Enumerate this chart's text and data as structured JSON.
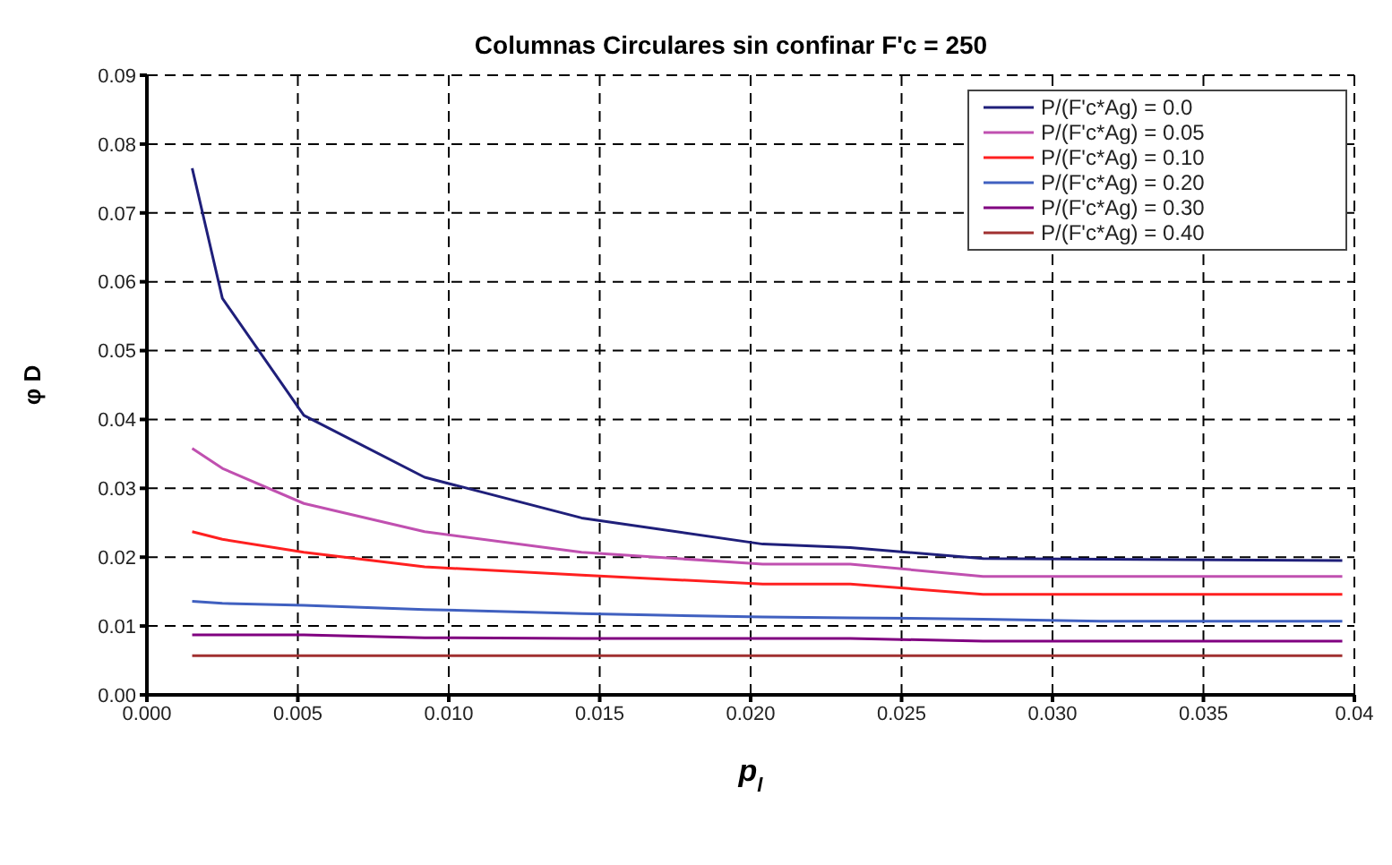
{
  "chart_data": {
    "type": "line",
    "title": "Columnas Circulares sin confinar F'c = 250",
    "xlabel": "p$_{l}$",
    "ylabel": "φ D",
    "x": [
      0.0015,
      0.0025,
      0.0052,
      0.0092,
      0.0144,
      0.0204,
      0.0233,
      0.0277,
      0.0316,
      0.0396
    ],
    "series": [
      {
        "name": "P/(F'c*Ag) = 0.0",
        "color": "#1f1f7a",
        "values": [
          0.0765,
          0.0576,
          0.0406,
          0.0316,
          0.0257,
          0.0219,
          0.0214,
          0.0198,
          0.0197,
          0.0195
        ]
      },
      {
        "name": "P/(F'c*Ag) = 0.05",
        "color": "#c050b0",
        "values": [
          0.0358,
          0.0329,
          0.0278,
          0.0237,
          0.0207,
          0.019,
          0.019,
          0.0172,
          0.0172,
          0.0172
        ]
      },
      {
        "name": "P/(F'c*Ag) = 0.10",
        "color": "#ff2020",
        "values": [
          0.0237,
          0.0226,
          0.0207,
          0.0186,
          0.0174,
          0.0161,
          0.0161,
          0.0146,
          0.0146,
          0.0146
        ]
      },
      {
        "name": "P/(F'c*Ag) = 0.20",
        "color": "#4060c0",
        "values": [
          0.0136,
          0.0133,
          0.013,
          0.0124,
          0.0118,
          0.0113,
          0.0112,
          0.011,
          0.0107,
          0.0107
        ]
      },
      {
        "name": "P/(F'c*Ag) = 0.30",
        "color": "#800080",
        "values": [
          0.0087,
          0.0087,
          0.0087,
          0.0083,
          0.0082,
          0.0082,
          0.0082,
          0.0078,
          0.0078,
          0.0078
        ]
      },
      {
        "name": "P/(F'c*Ag) = 0.40",
        "color": "#a03030",
        "values": [
          0.0057,
          0.0057,
          0.0057,
          0.0057,
          0.0057,
          0.0057,
          0.0057,
          0.0057,
          0.0057,
          0.0057
        ]
      }
    ],
    "xlim": [
      0,
      0.04
    ],
    "xticks": [
      {
        "value": 0,
        "label": "0.000"
      },
      {
        "value": 0.005,
        "label": "0.005"
      },
      {
        "value": 0.01,
        "label": "0.010"
      },
      {
        "value": 0.015,
        "label": "0.015"
      },
      {
        "value": 0.02,
        "label": "0.020"
      },
      {
        "value": 0.025,
        "label": "0.025"
      },
      {
        "value": 0.03,
        "label": "0.030"
      },
      {
        "value": 0.035,
        "label": "0.035"
      },
      {
        "value": 0.04,
        "label": "0.04"
      }
    ],
    "ylim": [
      0,
      0.09
    ],
    "yticks": [
      {
        "value": 0,
        "label": "0.00"
      },
      {
        "value": 0.01,
        "label": "0.01"
      },
      {
        "value": 0.02,
        "label": "0.02"
      },
      {
        "value": 0.03,
        "label": "0.03"
      },
      {
        "value": 0.04,
        "label": "0.04"
      },
      {
        "value": 0.05,
        "label": "0.05"
      },
      {
        "value": 0.06,
        "label": "0.06"
      },
      {
        "value": 0.07,
        "label": "0.07"
      },
      {
        "value": 0.08,
        "label": "0.08"
      },
      {
        "value": 0.09,
        "label": "0.09"
      }
    ],
    "grid": true,
    "legend": "top right",
    "marker": "none",
    "line_style": "solid"
  }
}
